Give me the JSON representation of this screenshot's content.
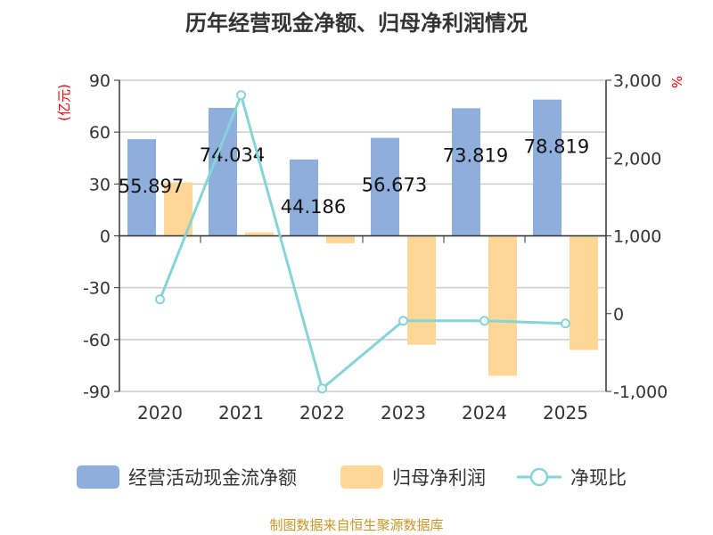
{
  "chart_data": {
    "type": "bar+line",
    "title": "历年经营现金净额、归母净利润情况",
    "categories": [
      "2020",
      "2021",
      "2022",
      "2023",
      "2024",
      "2025"
    ],
    "ylabel_left": "(亿元)",
    "ylabel_right": "%",
    "ylim_left": [
      -90,
      90
    ],
    "yticks_left": [
      "90",
      "60",
      "30",
      "0",
      "-30",
      "-60",
      "-90"
    ],
    "ylim_right": [
      -1000,
      3000
    ],
    "yticks_right": [
      "3,000",
      "2,000",
      "1,000",
      "0",
      "-1,000"
    ],
    "series": [
      {
        "name": "经营活动现金流净额",
        "type": "bar",
        "color": "#8eaedb",
        "values": [
          55.897,
          74.034,
          44.186,
          56.673,
          73.819,
          78.819
        ],
        "labels": [
          "55.897",
          "74.034",
          "44.186",
          "56.673",
          "73.819",
          "78.819"
        ]
      },
      {
        "name": "归母净利润",
        "type": "bar",
        "color": "#fed796",
        "values": [
          30.9,
          2.0,
          -4.3,
          -63.0,
          -81.0,
          -66.0
        ]
      },
      {
        "name": "净现比",
        "type": "line",
        "color": "#86d4d7",
        "axis": "right",
        "values": [
          183,
          2808,
          -963,
          -92,
          -92,
          -126
        ]
      }
    ],
    "legend_position": "bottom",
    "grid": true
  },
  "footer": "制图数据来自恒生聚源数据库"
}
